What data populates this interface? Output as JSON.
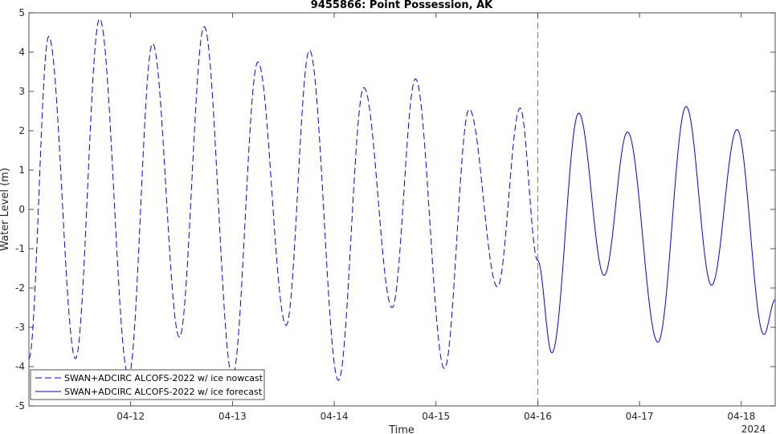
{
  "chart_data": {
    "type": "line",
    "title": "9455866: Point Possession, AK",
    "xlabel": "Time",
    "ylabel": "Water Level (m)",
    "year_label": "2024",
    "ylim": [
      -5,
      5
    ],
    "yticks": [
      -5,
      -4,
      -3,
      -2,
      -1,
      0,
      1,
      2,
      3,
      4,
      5
    ],
    "ytick_labels": [
      "-5",
      "-4",
      "-3",
      "-2",
      "-1",
      "0",
      "1",
      "2",
      "3",
      "4",
      "5"
    ],
    "xlim": [
      "2024-04-11 00:00",
      "2024-04-18 08:00"
    ],
    "xticks": [
      "2024-04-12 00:00",
      "2024-04-13 00:00",
      "2024-04-14 00:00",
      "2024-04-15 00:00",
      "2024-04-16 00:00",
      "2024-04-17 00:00",
      "2024-04-18 00:00"
    ],
    "xtick_labels": [
      "04-12",
      "04-13",
      "04-14",
      "04-15",
      "04-16",
      "04-17",
      "04-18"
    ],
    "grid": false,
    "legend_location": "bottom-left",
    "vertical_line": {
      "x": "2024-04-16 00:00",
      "style": "dashed",
      "color": "#7f7f7f"
    },
    "series": [
      {
        "name": "SWAN+ADCIRC ALCOFS-2022 w/ ice nowcast",
        "style": "dashed",
        "color": "#0000ff",
        "extrema": [
          {
            "x": "2024-04-11 00:00",
            "y": -3.8
          },
          {
            "x": "2024-04-11 04:40",
            "y": 4.4
          },
          {
            "x": "2024-04-11 11:00",
            "y": -3.8
          },
          {
            "x": "2024-04-11 16:40",
            "y": 4.85
          },
          {
            "x": "2024-04-11 23:30",
            "y": -4.25
          },
          {
            "x": "2024-04-12 05:10",
            "y": 4.22
          },
          {
            "x": "2024-04-12 11:30",
            "y": -3.25
          },
          {
            "x": "2024-04-12 17:20",
            "y": 4.65
          },
          {
            "x": "2024-04-13 00:00",
            "y": -4.25
          },
          {
            "x": "2024-04-13 06:00",
            "y": 3.75
          },
          {
            "x": "2024-04-13 12:40",
            "y": -2.95
          },
          {
            "x": "2024-04-13 18:10",
            "y": 4.05
          },
          {
            "x": "2024-04-14 01:00",
            "y": -4.35
          },
          {
            "x": "2024-04-14 07:00",
            "y": 3.1
          },
          {
            "x": "2024-04-14 13:40",
            "y": -2.5
          },
          {
            "x": "2024-04-14 19:10",
            "y": 3.32
          },
          {
            "x": "2024-04-15 02:00",
            "y": -4.05
          },
          {
            "x": "2024-04-15 07:50",
            "y": 2.55
          },
          {
            "x": "2024-04-15 14:30",
            "y": -1.97
          },
          {
            "x": "2024-04-15 19:50",
            "y": 2.58
          },
          {
            "x": "2024-04-16 00:00",
            "y": -1.3
          }
        ]
      },
      {
        "name": "SWAN+ADCIRC ALCOFS-2022 w/ ice forecast",
        "style": "solid",
        "color": "#0000ff",
        "extrema": [
          {
            "x": "2024-04-16 00:00",
            "y": -1.3
          },
          {
            "x": "2024-04-16 03:20",
            "y": -3.65
          },
          {
            "x": "2024-04-16 09:40",
            "y": 2.45
          },
          {
            "x": "2024-04-16 15:40",
            "y": -1.68
          },
          {
            "x": "2024-04-16 21:10",
            "y": 1.97
          },
          {
            "x": "2024-04-17 04:20",
            "y": -3.38
          },
          {
            "x": "2024-04-17 11:00",
            "y": 2.62
          },
          {
            "x": "2024-04-17 17:00",
            "y": -1.93
          },
          {
            "x": "2024-04-17 23:00",
            "y": 2.03
          },
          {
            "x": "2024-04-18 05:20",
            "y": -3.18
          },
          {
            "x": "2024-04-18 08:00",
            "y": -2.3
          }
        ]
      }
    ]
  }
}
